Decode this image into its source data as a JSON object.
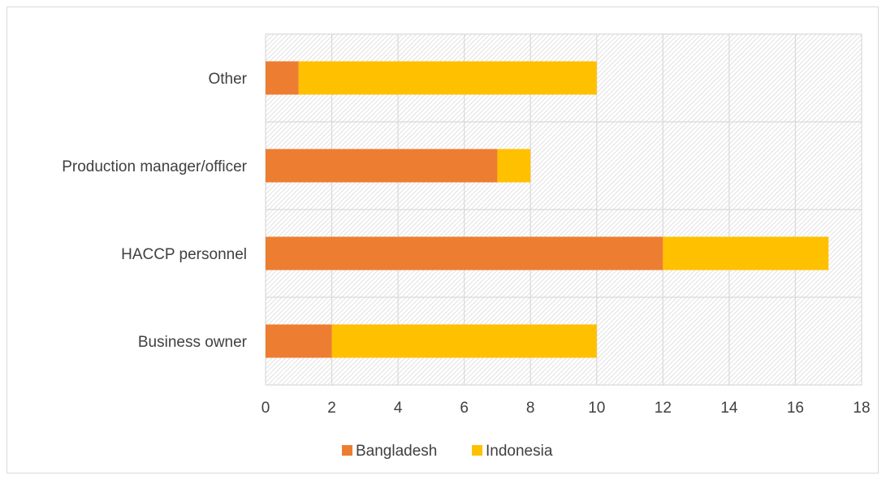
{
  "chart_data": {
    "type": "bar",
    "orientation": "horizontal",
    "stacked": true,
    "categories": [
      "Business owner",
      "HACCP personnel",
      "Production manager/officer",
      "Other"
    ],
    "series": [
      {
        "name": "Bangladesh",
        "color": "#ED7D31",
        "values": [
          2,
          12,
          7,
          1
        ]
      },
      {
        "name": "Indonesia",
        "color": "#FFC000",
        "values": [
          8,
          5,
          1,
          9
        ]
      }
    ],
    "xlim": [
      0,
      18
    ],
    "xticks": [
      0,
      2,
      4,
      6,
      8,
      10,
      12,
      14,
      16,
      18
    ],
    "grid": true,
    "plot_background": "hatched",
    "legend_position": "bottom"
  }
}
